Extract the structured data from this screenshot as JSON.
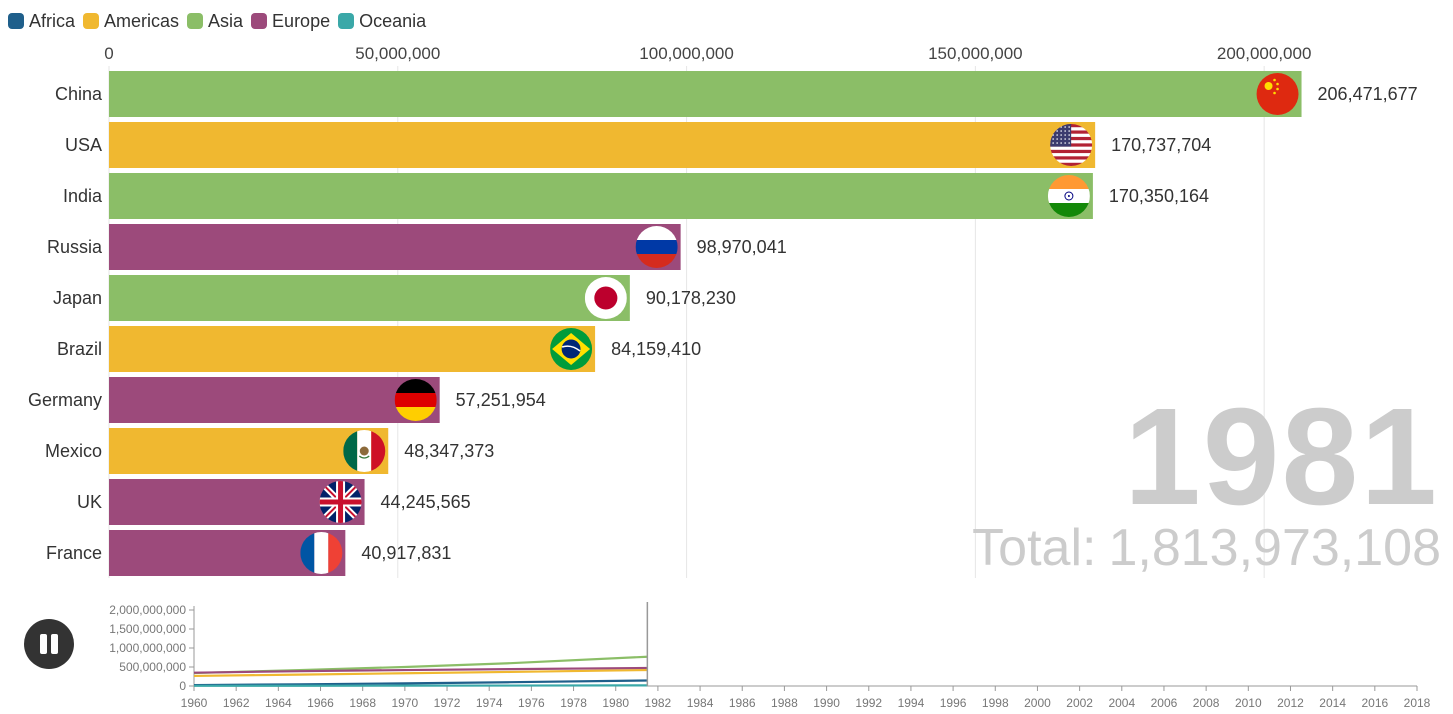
{
  "legend": [
    {
      "label": "Africa",
      "color": "#1f5f8b"
    },
    {
      "label": "Americas",
      "color": "#f0b830"
    },
    {
      "label": "Asia",
      "color": "#8bbe67"
    },
    {
      "label": "Europe",
      "color": "#9c4a7b"
    },
    {
      "label": "Oceania",
      "color": "#3aa8a8"
    }
  ],
  "colors": {
    "Africa": "#1f5f8b",
    "Americas": "#f0b830",
    "Asia": "#8bbe67",
    "Europe": "#9c4a7b",
    "Oceania": "#3aa8a8"
  },
  "year": "1981",
  "total_prefix": "Total:",
  "total_value": "1,813,973,108",
  "chart_data": [
    {
      "type": "bar",
      "orientation": "horizontal",
      "xlim": [
        0,
        223000000
      ],
      "x_ticks": [
        0,
        50000000,
        100000000,
        150000000,
        200000000
      ],
      "x_tick_labels": [
        "0",
        "50,000,000",
        "100,000,000",
        "150,000,000",
        "200,000,000"
      ],
      "grid": true,
      "legend_position": "top-left",
      "categories": [
        "China",
        "USA",
        "India",
        "Russia",
        "Japan",
        "Brazil",
        "Germany",
        "Mexico",
        "UK",
        "France"
      ],
      "values": [
        206471677,
        170737704,
        170350164,
        98970041,
        90178230,
        84159410,
        57251954,
        48347373,
        44245565,
        40917831
      ],
      "value_labels": [
        "206,471,677",
        "170,737,704",
        "170,350,164",
        "98,970,041",
        "90,178,230",
        "84,159,410",
        "57,251,954",
        "48,347,373",
        "44,245,565",
        "40,917,831"
      ],
      "regions": [
        "Asia",
        "Americas",
        "Asia",
        "Europe",
        "Asia",
        "Americas",
        "Europe",
        "Americas",
        "Europe",
        "Europe"
      ],
      "flags": [
        "china-flag",
        "usa-flag",
        "india-flag",
        "russia-flag",
        "japan-flag",
        "brazil-flag",
        "germany-flag",
        "mexico-flag",
        "uk-flag",
        "france-flag"
      ]
    },
    {
      "type": "line",
      "x": [
        1960,
        1965,
        1970,
        1975,
        1981.5
      ],
      "ylim": [
        0,
        2000000000
      ],
      "xlim": [
        1960,
        2018
      ],
      "y_ticks": [
        0,
        500000000,
        1000000000,
        1500000000,
        2000000000
      ],
      "y_tick_labels": [
        "0",
        "500,000,000",
        "1,000,000,000",
        "1,500,000,000",
        "2,000,000,000"
      ],
      "x_tick_labels": [
        "1960",
        "1962",
        "1964",
        "1966",
        "1968",
        "1970",
        "1972",
        "1974",
        "1976",
        "1978",
        "1980",
        "1982",
        "1984",
        "1986",
        "1988",
        "1990",
        "1992",
        "1994",
        "1996",
        "1998",
        "2000",
        "2002",
        "2004",
        "2006",
        "2008",
        "2010",
        "2012",
        "2014",
        "2016",
        "2018"
      ],
      "current_year": 1981.5,
      "series": [
        {
          "region": "Africa",
          "values": [
            25000000,
            45000000,
            70000000,
            100000000,
            145000000
          ]
        },
        {
          "region": "Americas",
          "values": [
            265000000,
            300000000,
            335000000,
            370000000,
            420000000
          ]
        },
        {
          "region": "Asia",
          "values": [
            340000000,
            420000000,
            500000000,
            600000000,
            770000000
          ]
        },
        {
          "region": "Europe",
          "values": [
            350000000,
            390000000,
            420000000,
            445000000,
            475000000
          ]
        },
        {
          "region": "Oceania",
          "values": [
            5000000,
            7000000,
            9000000,
            12000000,
            16000000
          ]
        }
      ]
    }
  ]
}
